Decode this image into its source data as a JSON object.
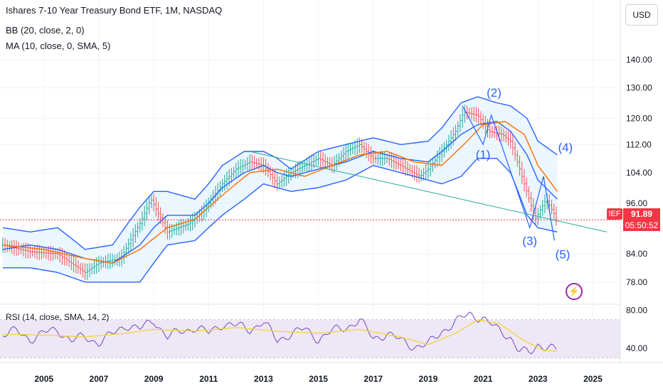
{
  "legend": {
    "title": "Ishares 7-10 Year Treasury Bond ETF, 1M, NASDAQ",
    "bb": "BB (20, close, 2, 0)",
    "ma": "MA (10, close, 0, SMA, 5)",
    "rsi": "RSI (14, close, SMA, 14, 2)"
  },
  "currency": "USD",
  "last_price": {
    "symbol": "IEF",
    "value": "91.89",
    "countdown": "05:50:52"
  },
  "colors": {
    "price_bars_up": "#26a69a",
    "price_bars_down": "#ef5350",
    "bands": "#2962ff",
    "band_fill": "#e3f2fd",
    "ma": "#ff6d00",
    "trendline": "#22ab94",
    "rsi": "#7e57c2",
    "rsi_ma": "#f5d33b",
    "rsi_fill": "#ede7f6",
    "wave_labels": "#2962ff",
    "price_line": "#f23645",
    "bolt": "#9c27b0"
  },
  "chart_data": [
    {
      "type": "line",
      "title": "Ishares 7-10 Year Treasury Bond ETF, 1M, NASDAQ",
      "x_ticks": [
        "2005",
        "2007",
        "2009",
        "2011",
        "2013",
        "2015",
        "2017",
        "2019",
        "2021",
        "2023",
        "2025"
      ],
      "y_ticks": [
        "140.00",
        "130.00",
        "120.00",
        "112.00",
        "104.00",
        "96.00",
        "84.00",
        "78.00"
      ],
      "y_scale": "log",
      "ylim": [
        74,
        152
      ],
      "xlim": [
        2003.4,
        2026.0
      ],
      "price": {
        "name": "IEF",
        "x": [
          2003.5,
          2004.5,
          2005.5,
          2006.5,
          2007.0,
          2007.8,
          2008.5,
          2008.9,
          2009.5,
          2010.3,
          2010.8,
          2011.5,
          2012.0,
          2012.5,
          2013.0,
          2013.5,
          2014.0,
          2014.5,
          2015.0,
          2015.5,
          2016.0,
          2016.5,
          2017.0,
          2017.5,
          2018.0,
          2018.7,
          2019.0,
          2019.5,
          2020.0,
          2020.3,
          2020.8,
          2021.2,
          2021.7,
          2022.0,
          2022.5,
          2022.9,
          2023.3,
          2023.7
        ],
        "y": [
          86,
          84.5,
          84,
          80,
          82,
          83,
          91,
          97,
          89,
          91,
          94,
          101,
          105,
          107,
          106,
          101,
          104,
          106,
          108,
          106,
          110,
          112,
          108,
          108,
          106,
          103,
          105,
          110,
          116,
          122,
          121,
          116,
          115,
          113,
          101,
          92,
          97,
          91.89
        ]
      },
      "bollinger": {
        "x": [
          2003.5,
          2004.5,
          2005.5,
          2006.5,
          2007.5,
          2008.5,
          2009.0,
          2009.5,
          2010.5,
          2011.0,
          2011.5,
          2012.3,
          2013.0,
          2013.5,
          2014.0,
          2015.0,
          2016.0,
          2017.0,
          2018.0,
          2019.0,
          2019.5,
          2020.2,
          2020.8,
          2021.5,
          2022.0,
          2022.6,
          2023.0,
          2023.7
        ],
        "upper": [
          90,
          89,
          90,
          85,
          86,
          95,
          99,
          99,
          97,
          101,
          106,
          110,
          110,
          108,
          105,
          110,
          112,
          114,
          112,
          113,
          117,
          125,
          127,
          125,
          124,
          120,
          113,
          109
        ],
        "middle": [
          85,
          86,
          85,
          83,
          82,
          86,
          90,
          93,
          93,
          96,
          100,
          104,
          106,
          104,
          103,
          105,
          107,
          110,
          108,
          107,
          110,
          115,
          118,
          119,
          116,
          109,
          102,
          97
        ],
        "lower": [
          81,
          81,
          80,
          78,
          78,
          78,
          82,
          86,
          87,
          90,
          93,
          97,
          101,
          100,
          99,
          100,
          102,
          106,
          104,
          102,
          101,
          103,
          108,
          108,
          104,
          93,
          90,
          89
        ]
      },
      "ma": {
        "name": "MA (10, close, 0, SMA, 5)",
        "x": [
          2003.5,
          2005,
          2006.5,
          2007.5,
          2008.5,
          2009.5,
          2010.5,
          2011.5,
          2012.5,
          2013.5,
          2014.5,
          2015.5,
          2016.5,
          2017.5,
          2018.5,
          2019.5,
          2020.3,
          2021.0,
          2021.8,
          2022.5,
          2023.0,
          2023.7
        ],
        "y": [
          86,
          85,
          83,
          82,
          85,
          90,
          92,
          98,
          104,
          105,
          103,
          106,
          109,
          110,
          107,
          106,
          112,
          118,
          119,
          115,
          106,
          99
        ]
      },
      "trendline": {
        "x": [
          2012.5,
          2025.5
        ],
        "y": [
          110,
          89
        ]
      },
      "wave_labels": [
        {
          "label": "(1)",
          "x": 2021.0,
          "y": 108
        },
        {
          "label": "(2)",
          "x": 2021.4,
          "y": 127
        },
        {
          "label": "(3)",
          "x": 2022.7,
          "y": 86
        },
        {
          "label": "(4)",
          "x": 2024.0,
          "y": 110
        },
        {
          "label": "(5)",
          "x": 2023.9,
          "y": 83
        }
      ],
      "last_value": 91.89
    },
    {
      "type": "line",
      "title": "RSI (14, close, SMA, 14, 2)",
      "y_ticks": [
        "80.00",
        "40.00"
      ],
      "ylim": [
        25,
        85
      ],
      "bands": [
        30,
        70
      ],
      "series": [
        {
          "name": "RSI",
          "x": [
            2003.5,
            2004.0,
            2004.5,
            2005.0,
            2005.5,
            2006.0,
            2006.5,
            2007.0,
            2007.5,
            2008.0,
            2008.5,
            2009.0,
            2009.5,
            2010.0,
            2010.5,
            2011.0,
            2011.5,
            2012.0,
            2012.5,
            2013.0,
            2013.5,
            2014.0,
            2014.5,
            2015.0,
            2015.5,
            2016.0,
            2016.5,
            2017.0,
            2017.5,
            2018.0,
            2018.5,
            2019.0,
            2019.5,
            2020.0,
            2020.5,
            2021.0,
            2021.5,
            2022.0,
            2022.3,
            2022.7,
            2023.0,
            2023.4,
            2023.7
          ],
          "values": [
            55,
            58,
            50,
            56,
            60,
            48,
            52,
            46,
            55,
            65,
            60,
            70,
            52,
            58,
            62,
            56,
            66,
            64,
            60,
            68,
            48,
            56,
            60,
            50,
            58,
            62,
            70,
            50,
            56,
            48,
            42,
            44,
            58,
            68,
            76,
            72,
            60,
            52,
            38,
            34,
            44,
            42,
            37
          ]
        },
        {
          "name": "RSI MA",
          "x": [
            2003.5,
            2005.0,
            2006.5,
            2008.0,
            2009.0,
            2010.5,
            2012.0,
            2013.5,
            2015.0,
            2016.5,
            2018.0,
            2019.0,
            2020.0,
            2020.8,
            2021.6,
            2022.5,
            2023.2,
            2023.7
          ],
          "values": [
            55,
            54,
            52,
            56,
            60,
            58,
            62,
            58,
            56,
            60,
            52,
            44,
            56,
            70,
            66,
            48,
            38,
            37
          ]
        }
      ]
    }
  ]
}
